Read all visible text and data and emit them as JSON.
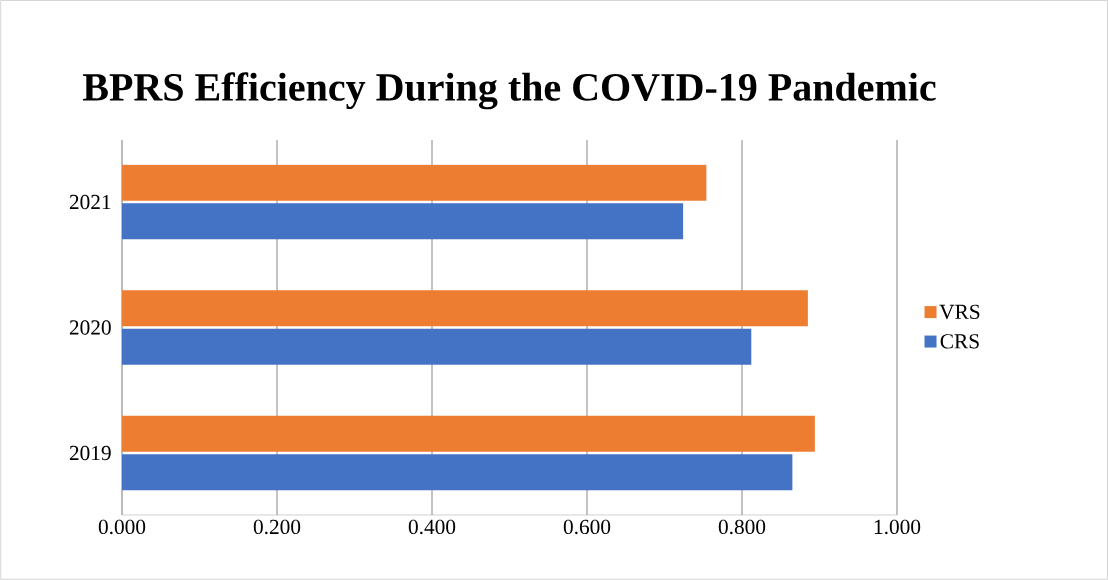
{
  "chart_data": {
    "type": "bar",
    "orientation": "horizontal",
    "title": "BPRS Efficiency During the COVID-19 Pandemic",
    "categories": [
      "2021",
      "2020",
      "2019"
    ],
    "series": [
      {
        "name": "VRS",
        "color": "#ed7d31",
        "values": [
          0.754,
          0.885,
          0.894
        ]
      },
      {
        "name": "CRS",
        "color": "#4472c4",
        "values": [
          0.724,
          0.812,
          0.865
        ]
      }
    ],
    "xlim": [
      0,
      1
    ],
    "xticks": [
      {
        "value": 0,
        "label": "0.000"
      },
      {
        "value": 0.2,
        "label": "0.200"
      },
      {
        "value": 0.4,
        "label": "0.400"
      },
      {
        "value": 0.6,
        "label": "0.600"
      },
      {
        "value": 0.8,
        "label": "0.800"
      },
      {
        "value": 1,
        "label": "1.000"
      }
    ],
    "grid": "x",
    "legend": "right"
  }
}
